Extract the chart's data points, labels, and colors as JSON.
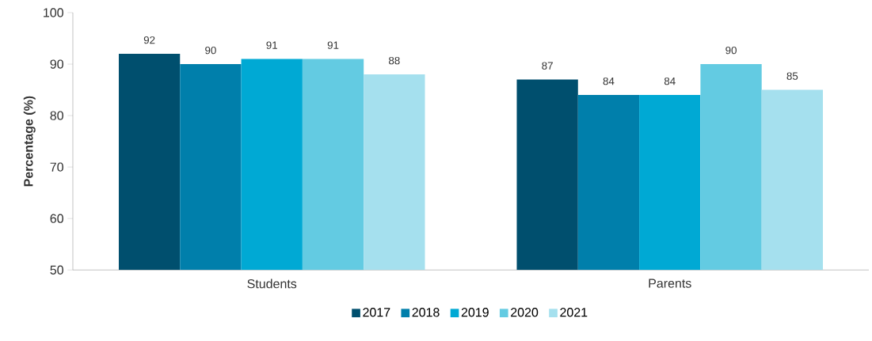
{
  "chart_data": {
    "type": "bar",
    "ylabel": "**Percentage (%)**",
    "categories": [
      "Students",
      "Parents"
    ],
    "series": [
      {
        "name": "2017",
        "color": "#004f6e",
        "values": [
          92,
          87
        ]
      },
      {
        "name": "2018",
        "color": "#007fab",
        "values": [
          90,
          84
        ]
      },
      {
        "name": "2019",
        "color": "#00a9d4",
        "values": [
          91,
          84
        ]
      },
      {
        "name": "2020",
        "color": "#63cbe2",
        "values": [
          91,
          90
        ]
      },
      {
        "name": "2021",
        "color": "#a5e0ee",
        "values": [
          88,
          85
        ]
      }
    ],
    "ylim": [
      50,
      100
    ],
    "yticks": [
      50,
      60,
      70,
      80,
      90,
      100
    ],
    "data_labels": true,
    "grid": false,
    "legend": "bottom"
  }
}
